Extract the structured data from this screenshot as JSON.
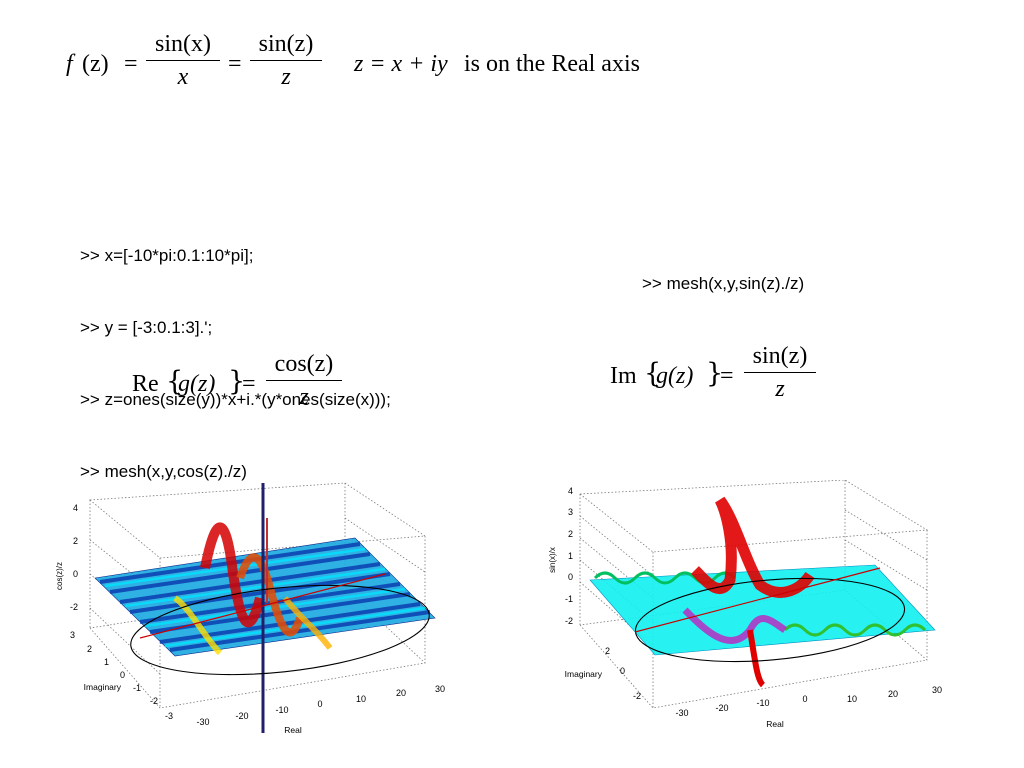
{
  "formula_top": {
    "lhs_fn": "f",
    "lhs_arg": "(z)",
    "eq": "=",
    "frac1_num": "sin(x)",
    "frac1_den": "x",
    "frac2_num": "sin(z)",
    "frac2_den": "z",
    "z_def": "z = x + iy",
    "note": "is on the Real axis"
  },
  "code_lines": [
    ">> x=[-10*pi:0.1:10*pi];",
    ">> y = [-3:0.1:3].';",
    ">> z=ones(size(y))*x+i.*(y*ones(size(x)));",
    ">> mesh(x,y,cos(z)./z)"
  ],
  "code_right": ">> mesh(x,y,sin(z)./z)",
  "formula_re": {
    "op": "Re",
    "arg": "g(z)",
    "eq": "=",
    "num": "cos(z)",
    "den": "z"
  },
  "formula_im": {
    "op": "Im",
    "arg": "g(z)",
    "eq": "=",
    "num": "sin(z)",
    "den": "z"
  },
  "plot_left": {
    "zlabel": "cos(z)/z",
    "ylabel": "Imaginary",
    "xlabel": "Real",
    "zticks": [
      "4",
      "2",
      "0",
      "-2"
    ],
    "yticks": [
      "3",
      "2",
      "1",
      "0",
      "-1",
      "-2",
      "-3"
    ],
    "xticks": [
      "-30",
      "-20",
      "-10",
      "0",
      "10",
      "20",
      "30"
    ]
  },
  "plot_right": {
    "zlabel": "sin(x)/x",
    "ylabel": "Imaginary",
    "xlabel": "Real",
    "zticks": [
      "4",
      "3",
      "2",
      "1",
      "0",
      "-1",
      "-2"
    ],
    "yticks": [
      "2",
      "0",
      "-2"
    ],
    "xticks": [
      "-30",
      "-20",
      "-10",
      "0",
      "10",
      "20",
      "30"
    ]
  },
  "colors": {
    "mesh_low": "#0000aa",
    "mesh_mid": "#00e5ff",
    "mesh_high": "#e00000",
    "line_real": "#cc0000",
    "circle": "#000000",
    "grid": "#7a7a7a"
  }
}
